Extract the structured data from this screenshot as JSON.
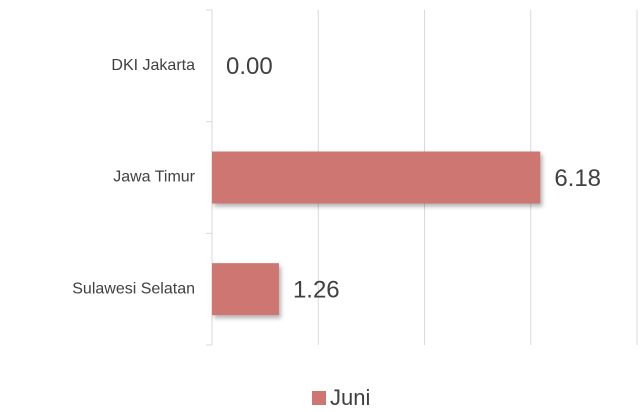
{
  "chart_data": {
    "type": "hbar",
    "categories": [
      "DKI Jakarta",
      "Jawa Timur",
      "Sulawesi Selatan"
    ],
    "series": [
      {
        "name": "Juni",
        "color": "#cd7672",
        "values": [
          0,
          6.18,
          1.26
        ],
        "value_labels": [
          "0.00",
          "6.18",
          "1.26"
        ]
      }
    ],
    "xlim": [
      0,
      8
    ],
    "xticks": [
      0,
      2,
      4,
      6,
      8
    ],
    "grid": true,
    "legend": "bottom"
  }
}
